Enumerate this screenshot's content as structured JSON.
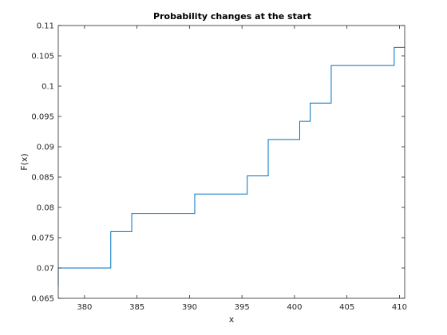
{
  "chart_data": {
    "type": "line",
    "style": "stairs",
    "title": "Probability changes at the start",
    "xlabel": "x",
    "ylabel": "F(x)",
    "xlim": [
      377.5,
      410.5
    ],
    "ylim": [
      0.065,
      0.11
    ],
    "grid": false,
    "x_ticks": [
      380,
      385,
      390,
      395,
      400,
      405,
      410
    ],
    "x_tick_labels": [
      "380",
      "385",
      "390",
      "395",
      "400",
      "405",
      "410"
    ],
    "y_ticks": [
      0.065,
      0.07,
      0.075,
      0.08,
      0.085,
      0.09,
      0.095,
      0.1,
      0.105,
      0.11
    ],
    "y_tick_labels": [
      "0.065",
      "0.07",
      "0.075",
      "0.08",
      "0.085",
      "0.09",
      "0.095",
      "0.1",
      "0.105",
      "0.11"
    ],
    "series": [
      {
        "color": "#0072bd",
        "x": [
          377.5,
          377.5,
          382.5,
          384.5,
          390.5,
          395.5,
          397.5,
          400.5,
          401.5,
          403.5,
          409.5,
          410.5
        ],
        "y": [
          0.067,
          0.07,
          0.076,
          0.079,
          0.0822,
          0.0852,
          0.0912,
          0.0942,
          0.0972,
          0.1034,
          0.1064,
          0.1064
        ]
      }
    ]
  }
}
